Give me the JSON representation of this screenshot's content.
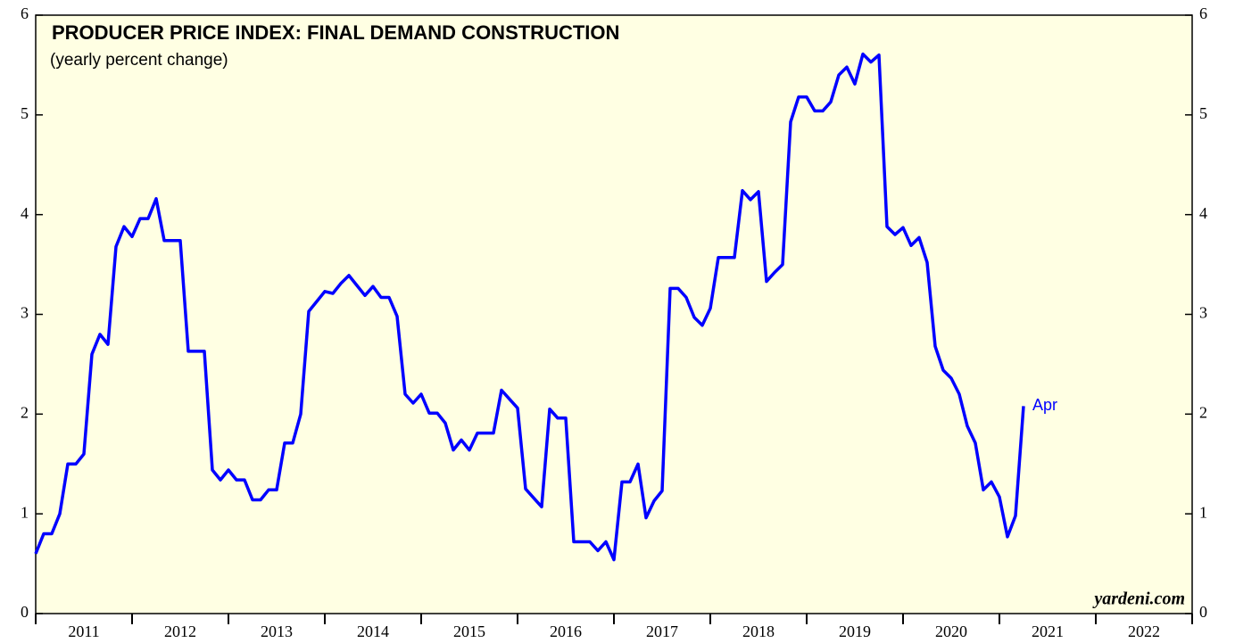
{
  "chart_data": {
    "type": "line",
    "title": "PRODUCER PRICE INDEX: FINAL DEMAND CONSTRUCTION",
    "subtitle": "(yearly percent change)",
    "annotation": "Apr",
    "source": "yardeni.com",
    "x": [
      "2011-01",
      "2011-02",
      "2011-03",
      "2011-04",
      "2011-05",
      "2011-06",
      "2011-07",
      "2011-08",
      "2011-09",
      "2011-10",
      "2011-11",
      "2011-12",
      "2012-01",
      "2012-02",
      "2012-03",
      "2012-04",
      "2012-05",
      "2012-06",
      "2012-07",
      "2012-08",
      "2012-09",
      "2012-10",
      "2012-11",
      "2012-12",
      "2013-01",
      "2013-02",
      "2013-03",
      "2013-04",
      "2013-05",
      "2013-06",
      "2013-07",
      "2013-08",
      "2013-09",
      "2013-10",
      "2013-11",
      "2013-12",
      "2014-01",
      "2014-02",
      "2014-03",
      "2014-04",
      "2014-05",
      "2014-06",
      "2014-07",
      "2014-08",
      "2014-09",
      "2014-10",
      "2014-11",
      "2014-12",
      "2015-01",
      "2015-02",
      "2015-03",
      "2015-04",
      "2015-05",
      "2015-06",
      "2015-07",
      "2015-08",
      "2015-09",
      "2015-10",
      "2015-11",
      "2015-12",
      "2016-01",
      "2016-02",
      "2016-03",
      "2016-04",
      "2016-05",
      "2016-06",
      "2016-07",
      "2016-08",
      "2016-09",
      "2016-10",
      "2016-11",
      "2016-12",
      "2017-01",
      "2017-02",
      "2017-03",
      "2017-04",
      "2017-05",
      "2017-06",
      "2017-07",
      "2017-08",
      "2017-09",
      "2017-10",
      "2017-11",
      "2017-12",
      "2018-01",
      "2018-02",
      "2018-03",
      "2018-04",
      "2018-05",
      "2018-06",
      "2018-07",
      "2018-08",
      "2018-09",
      "2018-10",
      "2018-11",
      "2018-12",
      "2019-01",
      "2019-02",
      "2019-03",
      "2019-04",
      "2019-05",
      "2019-06",
      "2019-07",
      "2019-08",
      "2019-09",
      "2019-10",
      "2019-11",
      "2019-12",
      "2020-01",
      "2020-02",
      "2020-03",
      "2020-04",
      "2020-05",
      "2020-06",
      "2020-07",
      "2020-08",
      "2020-09",
      "2020-10",
      "2020-11",
      "2020-12",
      "2021-01",
      "2021-02",
      "2021-03",
      "2021-04"
    ],
    "series": [
      {
        "name": "PPI final demand construction",
        "color": "#0000ff",
        "values": [
          0.6,
          0.8,
          0.8,
          1.0,
          1.5,
          1.5,
          1.6,
          2.6,
          2.8,
          2.7,
          3.68,
          3.88,
          3.78,
          3.96,
          3.96,
          4.16,
          3.74,
          3.74,
          3.74,
          2.63,
          2.63,
          2.63,
          1.44,
          1.34,
          1.44,
          1.34,
          1.34,
          1.14,
          1.14,
          1.24,
          1.24,
          1.71,
          1.71,
          2.0,
          3.03,
          3.13,
          3.23,
          3.21,
          3.31,
          3.39,
          3.29,
          3.19,
          3.28,
          3.17,
          3.17,
          2.98,
          2.2,
          2.11,
          2.2,
          2.01,
          2.01,
          1.91,
          1.64,
          1.74,
          1.64,
          1.81,
          1.81,
          1.81,
          2.24,
          2.15,
          2.06,
          1.25,
          1.16,
          1.07,
          2.05,
          1.96,
          1.96,
          0.72,
          0.72,
          0.72,
          0.63,
          0.72,
          0.54,
          1.32,
          1.32,
          1.5,
          0.96,
          1.13,
          1.23,
          3.26,
          3.26,
          3.17,
          2.97,
          2.89,
          3.06,
          3.57,
          3.57,
          3.57,
          4.24,
          4.15,
          4.23,
          3.33,
          3.42,
          3.5,
          4.93,
          5.18,
          5.18,
          5.04,
          5.04,
          5.13,
          5.4,
          5.48,
          5.31,
          5.61,
          5.53,
          5.6,
          3.88,
          3.8,
          3.87,
          3.69,
          3.77,
          3.52,
          2.68,
          2.44,
          2.36,
          2.2,
          1.88,
          1.71,
          1.24,
          1.32,
          1.17,
          0.77,
          0.98,
          2.08
        ]
      }
    ],
    "xlim": [
      2011,
      2023
    ],
    "xticks": [
      2011,
      2012,
      2013,
      2014,
      2015,
      2016,
      2017,
      2018,
      2019,
      2020,
      2021,
      2022
    ],
    "ylim": [
      0,
      6
    ],
    "yticks": [
      0,
      1,
      2,
      3,
      4,
      5,
      6
    ]
  }
}
